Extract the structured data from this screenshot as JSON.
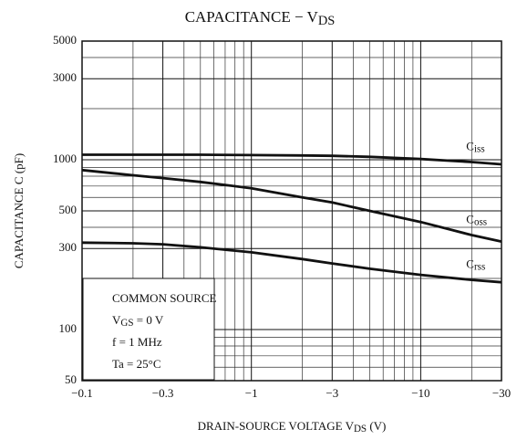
{
  "chart_data": {
    "type": "line",
    "title": [
      "CAPACITANCE − V",
      "DS"
    ],
    "x_label": [
      "DRAIN-SOURCE VOLTAGE  V",
      "DS",
      "  (V)"
    ],
    "y_label": [
      "CAPACITANCE  C  (pF)"
    ],
    "xscale": "log",
    "yscale": "log",
    "grid": true,
    "x": [
      -0.1,
      -0.2,
      -0.3,
      -0.5,
      -1,
      -2,
      -3,
      -5,
      -10,
      -20,
      -30
    ],
    "series": [
      {
        "name": [
          "C",
          "iss"
        ],
        "color": "#111111",
        "values": [
          1070,
          1070,
          1070,
          1070,
          1065,
          1060,
          1055,
          1040,
          1010,
          970,
          940
        ]
      },
      {
        "name": [
          "C",
          "oss"
        ],
        "color": "#111111",
        "values": [
          870,
          810,
          780,
          740,
          680,
          600,
          560,
          500,
          430,
          360,
          330
        ]
      },
      {
        "name": [
          "C",
          "rss"
        ],
        "color": "#111111",
        "values": [
          325,
          322,
          318,
          305,
          285,
          260,
          245,
          228,
          210,
          196,
          190
        ]
      }
    ],
    "annotation": [
      [
        "COMMON SOURCE"
      ],
      [
        "V",
        "GS",
        " = 0 V"
      ],
      [
        "f = 1 MHz"
      ],
      [
        "Ta = 25°C"
      ]
    ],
    "xlim": [
      -0.1,
      -30
    ],
    "ylim": [
      50,
      5000
    ],
    "xticks": [
      {
        "value": -0.1,
        "label": "−0.1"
      },
      {
        "value": -0.3,
        "label": "−0.3"
      },
      {
        "value": -1,
        "label": "−1"
      },
      {
        "value": -3,
        "label": "−3"
      },
      {
        "value": -10,
        "label": "−10"
      },
      {
        "value": -30,
        "label": "−30"
      }
    ],
    "yticks": [
      50,
      100,
      300,
      500,
      1000,
      3000,
      5000
    ],
    "xminor": [
      -0.2,
      -0.4,
      -0.5,
      -0.6,
      -0.7,
      -0.8,
      -0.9,
      -2,
      -4,
      -5,
      -6,
      -7,
      -8,
      -9,
      -20
    ],
    "yminor": [
      60,
      70,
      80,
      90,
      200,
      400,
      600,
      700,
      800,
      900,
      2000,
      4000
    ]
  }
}
